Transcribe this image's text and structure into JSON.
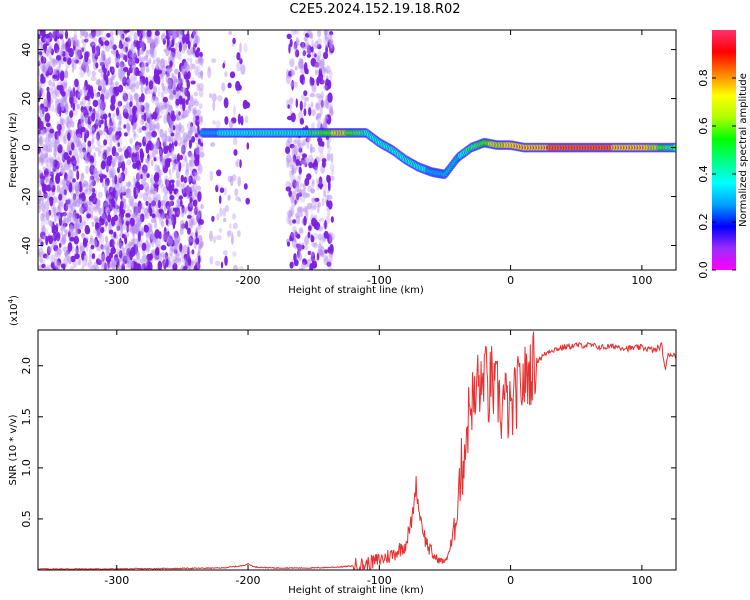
{
  "title": "C2E5.2024.152.19.18.R02",
  "colors": {
    "snr_line": "#e83030",
    "spectrogram_noise": "#7a1de0",
    "colorbar": [
      "#ff00ff",
      "#9b2cff",
      "#0000ff",
      "#00a0ff",
      "#00ffff",
      "#00ff80",
      "#00ff00",
      "#b0ff00",
      "#ffff00",
      "#ff8000",
      "#ff0000",
      "#ff3070"
    ]
  },
  "chart_data": [
    {
      "type": "heatmap",
      "name": "spectrogram",
      "xlabel": "Height of straight line (km)",
      "ylabel": "Frequency (Hz)",
      "xlim": [
        -360,
        126
      ],
      "ylim": [
        -50,
        48
      ],
      "xticks": [
        -300,
        -200,
        -100,
        0,
        100
      ],
      "yticks": [
        -40,
        -20,
        0,
        20,
        40
      ],
      "colorbar": {
        "label": "Normalized spectral amplitude",
        "range": [
          0,
          1
        ],
        "ticks": [
          "0.0",
          "0.2",
          "0.4",
          "0.6",
          "0.8"
        ]
      },
      "signal_track": {
        "x": [
          -235,
          -200,
          -160,
          -130,
          -110,
          -100,
          -90,
          -80,
          -70,
          -60,
          -50,
          -40,
          -30,
          -20,
          -10,
          0,
          10,
          50,
          100,
          126
        ],
        "frequency": [
          6,
          6,
          6,
          6,
          6,
          2,
          -1,
          -5,
          -8,
          -10,
          -11,
          -4,
          0,
          2,
          1,
          1,
          0,
          0,
          0,
          0
        ],
        "amplitude": [
          0.45,
          0.5,
          0.5,
          0.8,
          0.55,
          0.5,
          0.5,
          0.55,
          0.5,
          0.45,
          0.45,
          0.45,
          0.6,
          0.7,
          0.8,
          0.85,
          0.9,
          0.95,
          0.9,
          0.55
        ]
      },
      "noise_regions": [
        {
          "x": [
            -360,
            -235
          ],
          "density": "high"
        },
        {
          "x": [
            -230,
            -200
          ],
          "density": "low"
        },
        {
          "x": [
            -170,
            -135
          ],
          "density": "medium"
        }
      ]
    },
    {
      "type": "line",
      "name": "snr",
      "xlabel": "Height of straight line (km)",
      "ylabel": "SNR (10 * v/v)",
      "yscale_label": "(x10",
      "yscale_exp": "4",
      "xlim": [
        -360,
        126
      ],
      "ylim": [
        0,
        2.35
      ],
      "xticks": [
        -300,
        -200,
        -100,
        0,
        100
      ],
      "yticks": [
        "0.5",
        "1.0",
        "1.5",
        "2.0"
      ],
      "x": [
        -360,
        -300,
        -250,
        -220,
        -205,
        -200,
        -195,
        -180,
        -150,
        -130,
        -110,
        -100,
        -90,
        -80,
        -75,
        -72,
        -70,
        -65,
        -60,
        -55,
        -50,
        -45,
        -42,
        -40,
        -37,
        -35,
        -32,
        -30,
        -27,
        -25,
        -22,
        -20,
        -17,
        -15,
        -12,
        -10,
        -7,
        -5,
        0,
        5,
        10,
        15,
        20,
        25,
        30,
        40,
        50,
        60,
        70,
        80,
        90,
        100,
        110,
        115,
        118,
        120,
        126
      ],
      "y": [
        0.01,
        0.01,
        0.015,
        0.02,
        0.04,
        0.06,
        0.03,
        0.02,
        0.02,
        0.03,
        0.05,
        0.1,
        0.15,
        0.25,
        0.5,
        0.85,
        0.6,
        0.3,
        0.15,
        0.1,
        0.08,
        0.25,
        0.45,
        0.8,
        1.0,
        1.2,
        1.5,
        1.7,
        1.6,
        1.9,
        1.7,
        2.05,
        1.65,
        1.9,
        1.7,
        1.75,
        1.55,
        1.7,
        1.5,
        1.75,
        1.85,
        1.95,
        2.05,
        2.1,
        2.15,
        2.18,
        2.2,
        2.2,
        2.18,
        2.19,
        2.17,
        2.18,
        2.15,
        2.2,
        1.95,
        2.12,
        2.1
      ]
    }
  ]
}
